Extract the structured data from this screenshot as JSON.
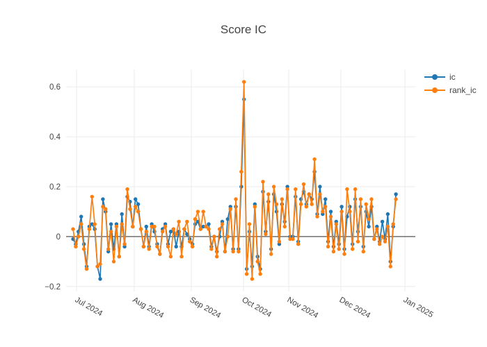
{
  "figure": {
    "title": "Score IC"
  },
  "legend": {
    "position": "top-right",
    "items": [
      {
        "label": "ic",
        "color": "#1f77b4"
      },
      {
        "label": "rank_ic",
        "color": "#ff7f0e"
      }
    ]
  },
  "chart_data": {
    "type": "line",
    "title": "Score IC",
    "xlabel": "",
    "ylabel": "",
    "grid": true,
    "zero_line": true,
    "legend_position": "top-right",
    "marker": "circle",
    "ylim": [
      -0.22,
      0.67
    ],
    "y_ticks": [
      -0.2,
      0,
      0.2,
      0.4,
      0.6
    ],
    "y_tick_labels": [
      "−0.2",
      "0",
      "0.2",
      "0.4",
      "0.6"
    ],
    "x_tick_labels": [
      "Jul 2024",
      "Aug 2024",
      "Sep 2024",
      "Oct 2024",
      "Nov 2024",
      "Dec 2024",
      "Jan 2025"
    ],
    "x": [
      "2024-07-01",
      "2024-07-02",
      "2024-07-03",
      "2024-07-04",
      "2024-07-05",
      "2024-07-08",
      "2024-07-09",
      "2024-07-10",
      "2024-07-11",
      "2024-07-12",
      "2024-07-15",
      "2024-07-16",
      "2024-07-17",
      "2024-07-18",
      "2024-07-19",
      "2024-07-22",
      "2024-07-23",
      "2024-07-24",
      "2024-07-25",
      "2024-07-26",
      "2024-07-29",
      "2024-07-30",
      "2024-07-31",
      "2024-08-01",
      "2024-08-02",
      "2024-08-05",
      "2024-08-06",
      "2024-08-07",
      "2024-08-08",
      "2024-08-09",
      "2024-08-12",
      "2024-08-13",
      "2024-08-14",
      "2024-08-15",
      "2024-08-16",
      "2024-08-19",
      "2024-08-20",
      "2024-08-21",
      "2024-08-22",
      "2024-08-23",
      "2024-08-26",
      "2024-08-27",
      "2024-08-28",
      "2024-08-29",
      "2024-08-30",
      "2024-09-02",
      "2024-09-03",
      "2024-09-04",
      "2024-09-05",
      "2024-09-06",
      "2024-09-09",
      "2024-09-10",
      "2024-09-11",
      "2024-09-12",
      "2024-09-13",
      "2024-09-16",
      "2024-09-17",
      "2024-09-18",
      "2024-09-19",
      "2024-09-20",
      "2024-09-23",
      "2024-09-24",
      "2024-09-25",
      "2024-09-26",
      "2024-09-27",
      "2024-09-30",
      "2024-10-01",
      "2024-10-02",
      "2024-10-03",
      "2024-10-04",
      "2024-10-07",
      "2024-10-08",
      "2024-10-09",
      "2024-10-10",
      "2024-10-11",
      "2024-10-14",
      "2024-10-15",
      "2024-10-16",
      "2024-10-17",
      "2024-10-18",
      "2024-10-21",
      "2024-10-22",
      "2024-10-23",
      "2024-10-24",
      "2024-10-25",
      "2024-10-28",
      "2024-10-29",
      "2024-10-30",
      "2024-10-31",
      "2024-11-01",
      "2024-11-04",
      "2024-11-05",
      "2024-11-06",
      "2024-11-07",
      "2024-11-08",
      "2024-11-11",
      "2024-11-12",
      "2024-11-13",
      "2024-11-14",
      "2024-11-15",
      "2024-11-18",
      "2024-11-19",
      "2024-11-20",
      "2024-11-21",
      "2024-11-22",
      "2024-11-25",
      "2024-11-26",
      "2024-11-27",
      "2024-11-28",
      "2024-11-29",
      "2024-12-02",
      "2024-12-03",
      "2024-12-04",
      "2024-12-05",
      "2024-12-06",
      "2024-12-09",
      "2024-12-10",
      "2024-12-11",
      "2024-12-12",
      "2024-12-13"
    ],
    "series": [
      {
        "name": "ic",
        "color": "#1f77b4",
        "values": [
          -0.01,
          -0.03,
          0.02,
          0.08,
          -0.03,
          -0.12,
          0.04,
          0.05,
          0.03,
          -0.12,
          -0.17,
          0.15,
          0.1,
          -0.06,
          0.05,
          -0.05,
          0.05,
          -0.08,
          0.09,
          -0.04,
          0.16,
          0.14,
          0.04,
          0.15,
          0.13,
          0.03,
          -0.04,
          0.04,
          -0.04,
          0.05,
          0.02,
          -0.03,
          -0.07,
          0.03,
          0.05,
          -0.03,
          0.02,
          0.03,
          -0.04,
          0.02,
          -0.04,
          0.03,
          0.01,
          -0.01,
          -0.03,
          0.05,
          0.06,
          0.03,
          0.04,
          0.04,
          0.05,
          -0.04,
          0.0,
          -0.06,
          0.0,
          0.06,
          -0.06,
          0.07,
          0.12,
          -0.05,
          0.12,
          -0.05,
          0.2,
          0.55,
          -0.13,
          0.02,
          -0.12,
          0.13,
          -0.08,
          -0.13,
          0.18,
          0.02,
          0.14,
          -0.05,
          0.17,
          0.1,
          -0.03,
          0.13,
          0.06,
          0.2,
          0.0,
          0.0,
          0.16,
          -0.02,
          0.15,
          0.18,
          0.13,
          0.17,
          0.15,
          0.26,
          0.09,
          0.2,
          0.09,
          0.15,
          -0.02,
          0.1,
          -0.04,
          0.06,
          -0.03,
          0.12,
          -0.05,
          0.08,
          0.12,
          -0.03,
          0.15,
          0.02,
          0.12,
          -0.04,
          0.1,
          0.04,
          0.12,
          -0.01,
          0.04,
          -0.02,
          0.06,
          -0.01,
          0.09,
          -0.1,
          0.04,
          0.17
        ]
      },
      {
        "name": "rank_ic",
        "color": "#ff7f0e",
        "values": [
          0.03,
          -0.04,
          0.0,
          0.05,
          -0.05,
          -0.13,
          0.03,
          0.16,
          0.05,
          -0.12,
          -0.11,
          0.12,
          0.11,
          -0.05,
          0.02,
          -0.1,
          0.04,
          -0.08,
          0.05,
          -0.03,
          0.19,
          0.11,
          0.04,
          0.12,
          0.1,
          0.03,
          -0.04,
          0.02,
          -0.05,
          0.04,
          0.04,
          -0.04,
          -0.07,
          0.02,
          0.04,
          -0.04,
          -0.08,
          0.03,
          0.01,
          0.06,
          -0.08,
          0.03,
          0.06,
          -0.02,
          -0.04,
          0.07,
          0.1,
          0.03,
          0.1,
          0.04,
          0.03,
          -0.05,
          0.0,
          -0.08,
          0.03,
          0.05,
          -0.06,
          0.0,
          0.11,
          -0.06,
          0.15,
          -0.06,
          0.26,
          0.62,
          -0.15,
          0.05,
          -0.17,
          0.12,
          -0.1,
          -0.15,
          0.22,
          0.01,
          0.17,
          -0.07,
          0.2,
          0.13,
          -0.02,
          0.15,
          0.04,
          0.19,
          -0.01,
          -0.01,
          0.19,
          -0.03,
          0.13,
          0.21,
          0.12,
          0.17,
          0.13,
          0.31,
          0.08,
          0.17,
          0.1,
          0.12,
          -0.04,
          0.08,
          -0.06,
          0.05,
          -0.05,
          0.1,
          -0.07,
          0.19,
          0.1,
          -0.05,
          0.19,
          -0.02,
          0.15,
          -0.06,
          0.13,
          0.07,
          0.15,
          -0.01,
          0.03,
          -0.03,
          0.0,
          -0.02,
          0.04,
          -0.12,
          0.05,
          0.15
        ]
      }
    ]
  },
  "colors": {
    "background": "#ffffff",
    "grid": "#ebebeb",
    "zero_line": "#545454",
    "text": "#444444",
    "ic": "#1f77b4",
    "rank_ic": "#ff7f0e"
  }
}
